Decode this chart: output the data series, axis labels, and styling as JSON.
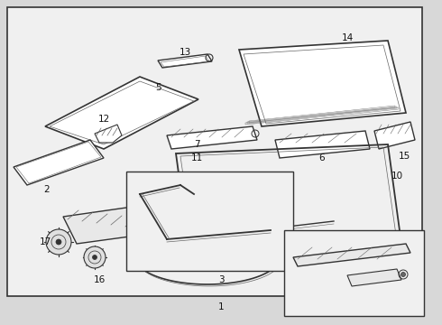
{
  "bg_color": "#d8d8d8",
  "box_bg": "#f0f0f0",
  "line_color": "#333333",
  "text_color": "#111111",
  "line_color_light": "#666666",
  "label_font": 7.5
}
